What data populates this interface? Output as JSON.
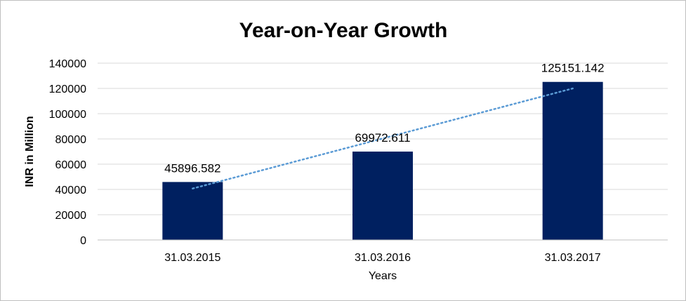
{
  "chart_data": {
    "type": "bar",
    "title": "Year-on-Year Growth",
    "xlabel": "Years",
    "ylabel": "INR in Million",
    "categories": [
      "31.03.2015",
      "31.03.2016",
      "31.03.2017"
    ],
    "values": [
      45896.582,
      69972.611,
      125151.142
    ],
    "data_labels": [
      "45896.582",
      "69972.611",
      "125151.142"
    ],
    "ylim": [
      0,
      140000
    ],
    "y_ticks": [
      "0",
      "20000",
      "40000",
      "60000",
      "80000",
      "100000",
      "120000",
      "140000"
    ],
    "trendline": {
      "type": "linear",
      "style": "dotted"
    },
    "grid": true,
    "legend": "none",
    "colors": {
      "bar": "#002060",
      "trendline": "#5b9bd5",
      "grid": "#d9d9d9",
      "axis": "#bfbfbf"
    }
  }
}
